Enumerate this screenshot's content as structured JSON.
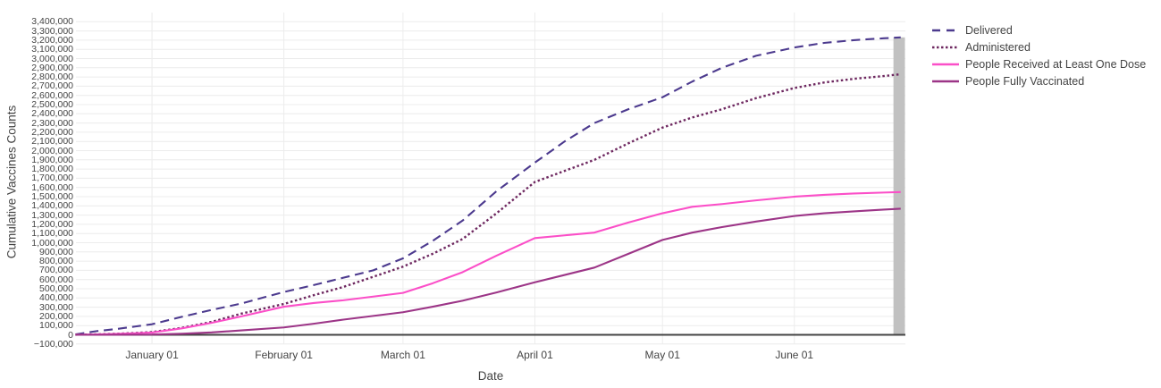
{
  "chart_data": {
    "type": "line",
    "title": "",
    "xlabel": "Date",
    "ylabel": "Cumulative Vaccines Counts",
    "ylim": [
      -100000,
      3400000
    ],
    "ytick_step": 100000,
    "grid": true,
    "legend_position": "right-top",
    "xticks": [
      {
        "day": 18,
        "label": "January 01"
      },
      {
        "day": 49,
        "label": "February 01"
      },
      {
        "day": 77,
        "label": "March 01"
      },
      {
        "day": 108,
        "label": "April 01"
      },
      {
        "day": 138,
        "label": "May 01"
      },
      {
        "day": 169,
        "label": "June 01"
      }
    ],
    "x_days": [
      0,
      5,
      10,
      14,
      18,
      25,
      32,
      39,
      49,
      56,
      63,
      70,
      77,
      84,
      91,
      99,
      108,
      115,
      122,
      130,
      138,
      145,
      152,
      160,
      169,
      176,
      183,
      190,
      194
    ],
    "series": [
      {
        "name": "Delivered",
        "color": "#4c3a8e",
        "dash": "dash",
        "values": [
          5000,
          40000,
          65000,
          90000,
          115000,
          195000,
          270000,
          340000,
          465000,
          540000,
          620000,
          700000,
          830000,
          1020000,
          1240000,
          1560000,
          1870000,
          2100000,
          2300000,
          2450000,
          2580000,
          2750000,
          2900000,
          3030000,
          3120000,
          3170000,
          3200000,
          3220000,
          3230000
        ]
      },
      {
        "name": "Administered",
        "color": "#6e2860",
        "dash": "dot",
        "values": [
          1000,
          5000,
          12000,
          20000,
          30000,
          75000,
          140000,
          230000,
          335000,
          430000,
          520000,
          630000,
          740000,
          880000,
          1040000,
          1320000,
          1660000,
          1780000,
          1900000,
          2080000,
          2250000,
          2360000,
          2450000,
          2570000,
          2680000,
          2740000,
          2780000,
          2810000,
          2830000
        ]
      },
      {
        "name": "People Received at Least One Dose",
        "color": "#fb4fc8",
        "dash": "solid",
        "values": [
          1000,
          4000,
          10000,
          17000,
          25000,
          70000,
          130000,
          200000,
          305000,
          345000,
          375000,
          415000,
          455000,
          560000,
          680000,
          860000,
          1050000,
          1080000,
          1110000,
          1220000,
          1320000,
          1390000,
          1420000,
          1460000,
          1500000,
          1520000,
          1535000,
          1545000,
          1550000
        ]
      },
      {
        "name": "People Fully Vaccinated",
        "color": "#9c3587",
        "dash": "solid",
        "values": [
          0,
          0,
          1000,
          2000,
          3000,
          12000,
          26000,
          48000,
          80000,
          120000,
          165000,
          205000,
          245000,
          305000,
          370000,
          460000,
          570000,
          650000,
          730000,
          880000,
          1030000,
          1110000,
          1170000,
          1230000,
          1290000,
          1320000,
          1340000,
          1360000,
          1370000
        ]
      }
    ],
    "highlight_bar": {
      "from_day": 192.3,
      "to_day": 195,
      "top_value": 3230000,
      "color": "#c1c1c1"
    }
  },
  "style": {
    "grid_color": "#ececec",
    "zero_line_color": "#444444",
    "tick_color": "#444444"
  }
}
